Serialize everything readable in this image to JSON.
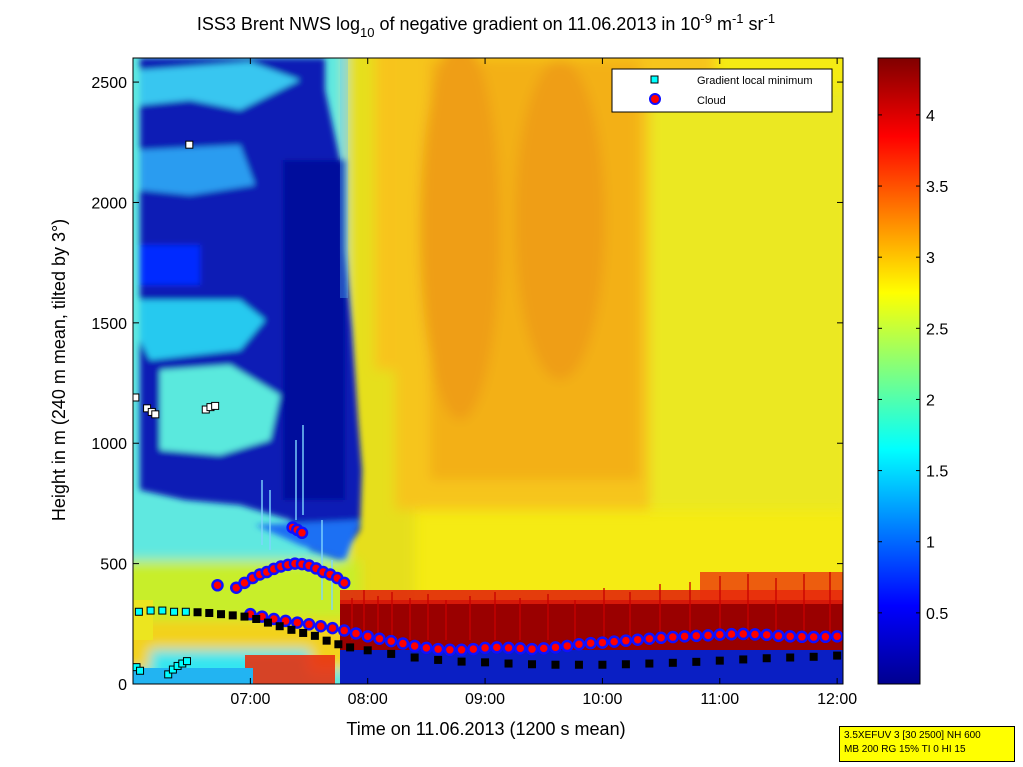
{
  "chart_data": {
    "type": "heatmap",
    "title_parts": {
      "a": "ISS3 Brent NWS log",
      "sub": "10",
      "b": " of negative gradient on 11.06.2013 in 10",
      "sup1": "-9",
      "c": " m",
      "sup2": "-1",
      "d": " sr",
      "sup3": "-1"
    },
    "xlabel": "Time on 11.06.2013 (1200 s mean)",
    "ylabel": "Height in m (240 m mean, tilted by 3°)",
    "x_range_hours": [
      6.0,
      12.05
    ],
    "ylim": [
      0,
      2600
    ],
    "x_ticks": [
      "07:00",
      "08:00",
      "09:00",
      "10:00",
      "11:00",
      "12:00"
    ],
    "y_ticks": [
      "0",
      "500",
      "1000",
      "1500",
      "2000",
      "2500"
    ],
    "colorbar": {
      "range": [
        0.0,
        4.4
      ],
      "ticks": [
        "0.5",
        "1",
        "1.5",
        "2",
        "2.5",
        "3",
        "3.5",
        "4"
      ],
      "colormap": "jet"
    },
    "legend": {
      "placement": "top-right",
      "entries": [
        "Gradient local minimum",
        "Cloud"
      ]
    },
    "series": [
      {
        "name": "Gradient local minimum",
        "marker": "square",
        "color": "#00ffff",
        "points": [
          [
            6.02,
            1190
          ],
          [
            6.12,
            1145
          ],
          [
            6.16,
            1130
          ],
          [
            6.19,
            1120
          ],
          [
            6.62,
            1140
          ],
          [
            6.66,
            1150
          ],
          [
            6.7,
            1155
          ],
          [
            6.48,
            2240
          ],
          [
            6.03,
            70
          ],
          [
            6.06,
            55
          ],
          [
            6.3,
            40
          ],
          [
            6.34,
            60
          ],
          [
            6.38,
            75
          ],
          [
            6.42,
            85
          ],
          [
            6.46,
            95
          ],
          [
            6.05,
            300
          ],
          [
            6.15,
            305
          ],
          [
            6.25,
            305
          ],
          [
            6.35,
            300
          ],
          [
            6.45,
            300
          ],
          [
            6.55,
            298
          ],
          [
            6.65,
            295
          ],
          [
            6.75,
            290
          ],
          [
            6.85,
            285
          ],
          [
            6.95,
            280
          ],
          [
            7.05,
            270
          ],
          [
            7.15,
            255
          ],
          [
            7.25,
            240
          ],
          [
            7.35,
            225
          ],
          [
            7.45,
            212
          ],
          [
            7.55,
            200
          ],
          [
            7.65,
            180
          ],
          [
            7.75,
            165
          ],
          [
            7.85,
            152
          ],
          [
            8.0,
            140
          ],
          [
            8.2,
            125
          ],
          [
            8.4,
            110
          ],
          [
            8.6,
            100
          ],
          [
            8.8,
            93
          ],
          [
            9.0,
            90
          ],
          [
            9.2,
            85
          ],
          [
            9.4,
            82
          ],
          [
            9.6,
            80
          ],
          [
            9.8,
            80
          ],
          [
            10.0,
            80
          ],
          [
            10.2,
            82
          ],
          [
            10.4,
            85
          ],
          [
            10.6,
            88
          ],
          [
            10.8,
            92
          ],
          [
            11.0,
            97
          ],
          [
            11.2,
            102
          ],
          [
            11.4,
            107
          ],
          [
            11.6,
            110
          ],
          [
            11.8,
            113
          ],
          [
            12.0,
            118
          ]
        ]
      },
      {
        "name": "Cloud",
        "marker": "circle",
        "color": "#ff0000",
        "points": [
          [
            6.72,
            410
          ],
          [
            6.88,
            400
          ],
          [
            6.95,
            420
          ],
          [
            7.02,
            440
          ],
          [
            7.08,
            455
          ],
          [
            7.14,
            465
          ],
          [
            7.2,
            478
          ],
          [
            7.26,
            488
          ],
          [
            7.32,
            495
          ],
          [
            7.38,
            500
          ],
          [
            7.44,
            498
          ],
          [
            7.5,
            492
          ],
          [
            7.56,
            480
          ],
          [
            7.62,
            465
          ],
          [
            7.68,
            455
          ],
          [
            7.74,
            440
          ],
          [
            7.8,
            420
          ],
          [
            7.36,
            650
          ],
          [
            7.4,
            640
          ],
          [
            7.44,
            628
          ],
          [
            7.0,
            290
          ],
          [
            7.1,
            280
          ],
          [
            7.2,
            270
          ],
          [
            7.3,
            262
          ],
          [
            7.4,
            255
          ],
          [
            7.5,
            248
          ],
          [
            7.6,
            240
          ],
          [
            7.7,
            232
          ],
          [
            7.8,
            222
          ],
          [
            7.9,
            210
          ],
          [
            8.0,
            198
          ],
          [
            8.1,
            188
          ],
          [
            8.2,
            178
          ],
          [
            8.3,
            168
          ],
          [
            8.4,
            158
          ],
          [
            8.5,
            150
          ],
          [
            8.6,
            145
          ],
          [
            8.7,
            142
          ],
          [
            8.8,
            142
          ],
          [
            8.9,
            145
          ],
          [
            9.0,
            150
          ],
          [
            9.1,
            152
          ],
          [
            9.2,
            150
          ],
          [
            9.3,
            148
          ],
          [
            9.4,
            145
          ],
          [
            9.5,
            148
          ],
          [
            9.6,
            152
          ],
          [
            9.7,
            158
          ],
          [
            9.8,
            165
          ],
          [
            9.9,
            170
          ],
          [
            10.0,
            172
          ],
          [
            10.1,
            176
          ],
          [
            10.2,
            180
          ],
          [
            10.3,
            184
          ],
          [
            10.4,
            188
          ],
          [
            10.5,
            192
          ],
          [
            10.6,
            195
          ],
          [
            10.7,
            198
          ],
          [
            10.8,
            200
          ],
          [
            10.9,
            202
          ],
          [
            11.0,
            205
          ],
          [
            11.1,
            207
          ],
          [
            11.2,
            208
          ],
          [
            11.3,
            206
          ],
          [
            11.4,
            204
          ],
          [
            11.5,
            200
          ],
          [
            11.6,
            198
          ],
          [
            11.7,
            196
          ],
          [
            11.8,
            195
          ],
          [
            11.9,
            196
          ],
          [
            12.0,
            198
          ]
        ]
      }
    ],
    "info_box": [
      "3.5XEFUV 3 [30 2500] NH 600",
      "MB 200 RG 15% TI 0 HI 15"
    ]
  }
}
